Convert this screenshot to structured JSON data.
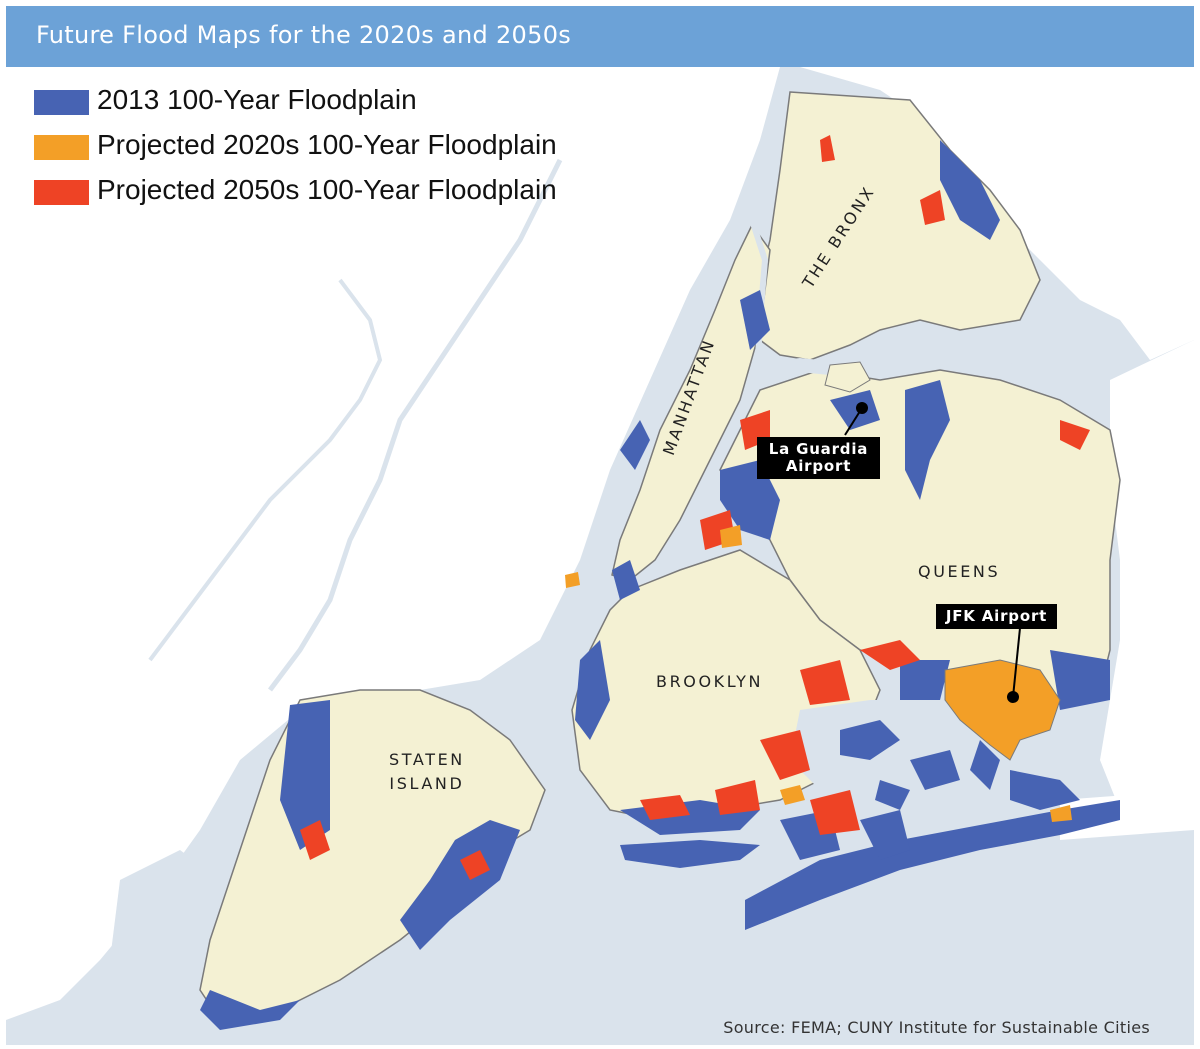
{
  "header": {
    "title": "Future Flood Maps for the 2020s and 2050s",
    "bar_color": "#6ca2d7"
  },
  "legend": {
    "items": [
      {
        "label": "2013 100-Year Floodplain",
        "color": "#4763b3"
      },
      {
        "label": "Projected 2020s 100-Year Floodplain",
        "color": "#f39f27"
      },
      {
        "label": "Projected 2050s 100-Year Floodplain",
        "color": "#ee4325"
      }
    ]
  },
  "map": {
    "water_color": "#dae3ec",
    "land_color": "#f4f1d3",
    "outside_land_color": "#ffffff",
    "boroughs": {
      "manhattan": "MANHATTAN",
      "bronx": "THE BRONX",
      "queens": "QUEENS",
      "brooklyn": "BROOKLYN",
      "staten_island_line1": "STATEN",
      "staten_island_line2": "ISLAND"
    },
    "callouts": {
      "laguardia_line1": "La Guardia",
      "laguardia_line2": "Airport",
      "jfk": "JFK Airport"
    }
  },
  "source": "Source: FEMA; CUNY Institute for Sustainable Cities"
}
